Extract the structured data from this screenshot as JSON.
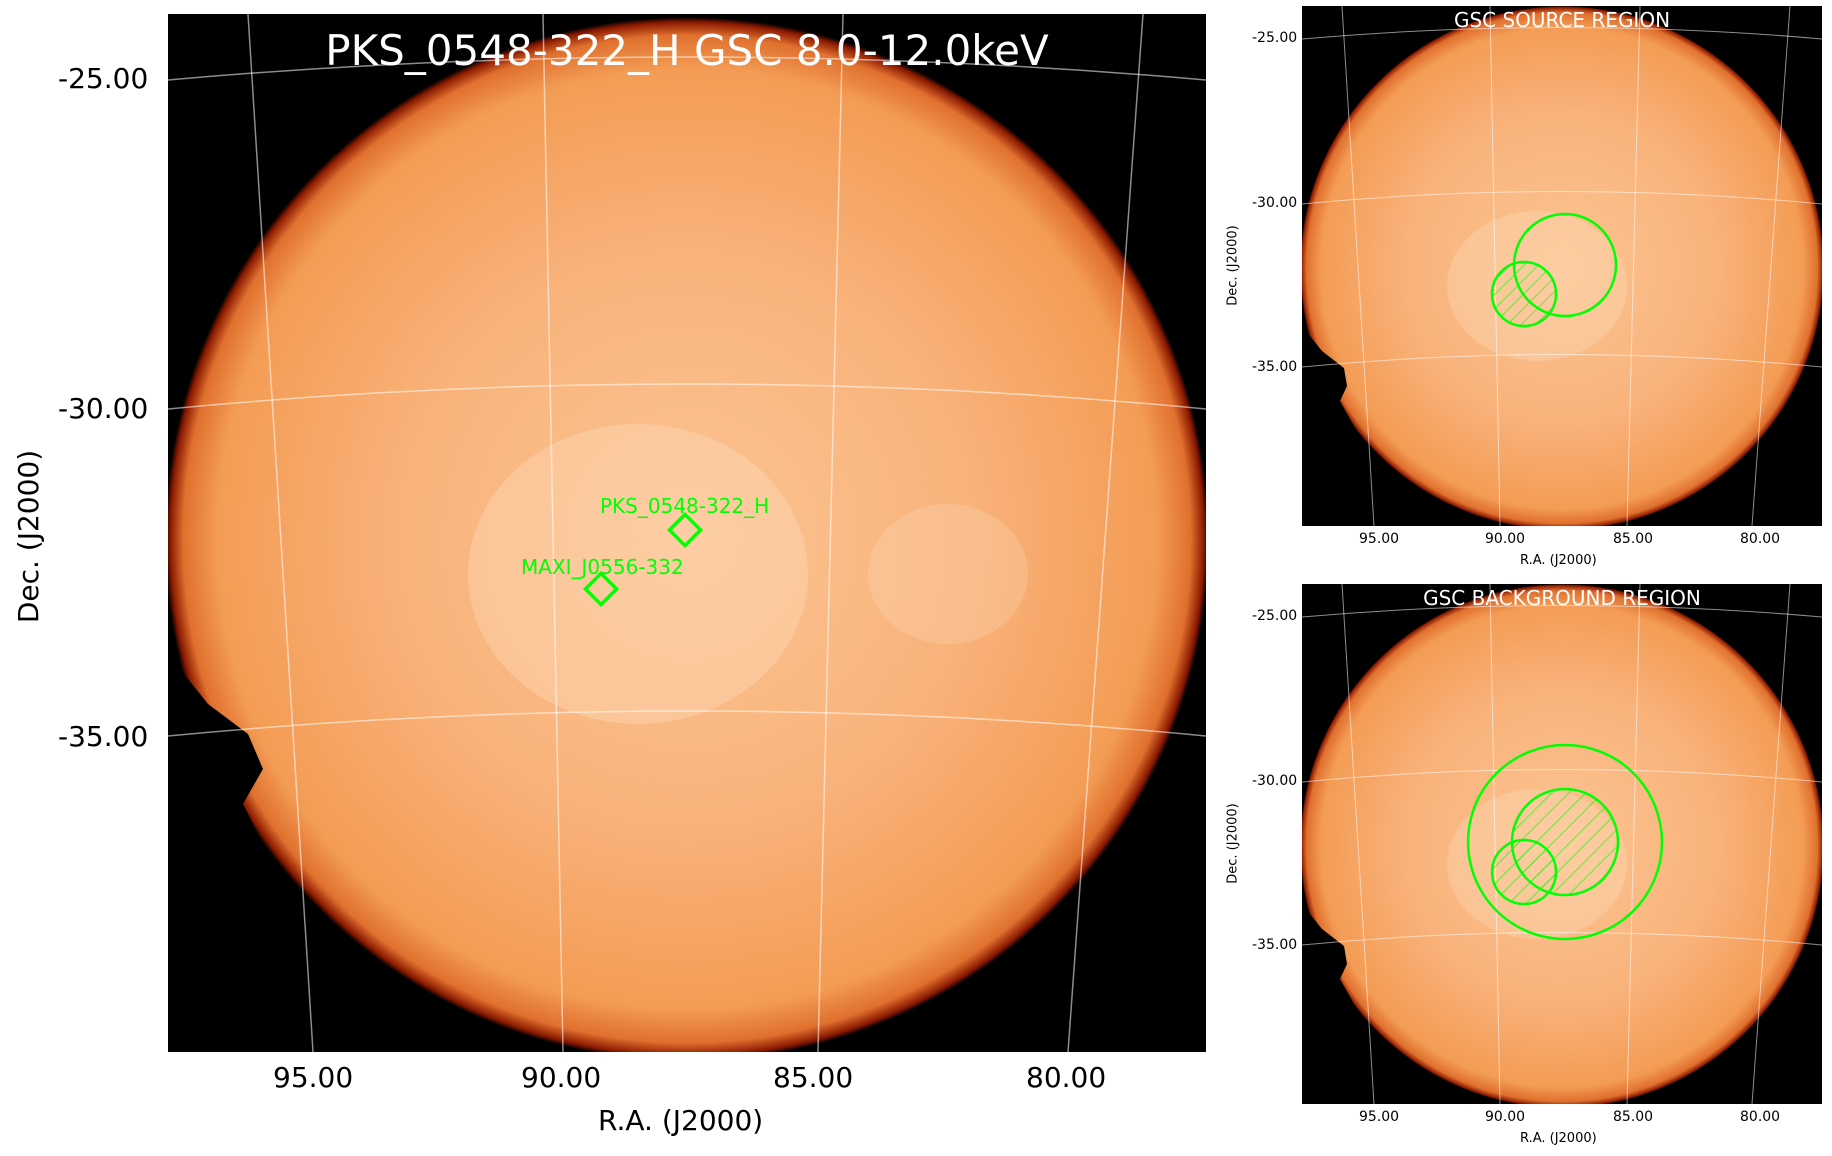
{
  "main": {
    "title": "PKS_0548-322_H GSC 8.0-12.0keV",
    "xlabel": "R.A. (J2000)",
    "ylabel": "Dec. (J2000)",
    "xticks": [
      "95.00",
      "90.00",
      "85.00",
      "80.00"
    ],
    "yticks": [
      "-25.00",
      "-30.00",
      "-35.00"
    ],
    "sources": [
      {
        "name": "PKS_0548-322_H"
      },
      {
        "name": "MAXI_J0556-332"
      }
    ]
  },
  "source_panel": {
    "title": "GSC SOURCE REGION",
    "xlabel": "R.A. (J2000)",
    "ylabel": "Dec. (J2000)",
    "xticks": [
      "95.00",
      "90.00",
      "85.00",
      "80.00"
    ],
    "yticks": [
      "-25.00",
      "-30.00",
      "-35.00"
    ]
  },
  "background_panel": {
    "title": "GSC BACKGROUND REGION",
    "xlabel": "R.A. (J2000)",
    "ylabel": "Dec. (J2000)",
    "xticks": [
      "95.00",
      "90.00",
      "85.00",
      "80.00"
    ],
    "yticks": [
      "-25.00",
      "-30.00",
      "-35.00"
    ]
  },
  "colors": {
    "disk_center": "#fdc89a",
    "disk_mid": "#f7a35c",
    "disk_edge": "#8b1a00",
    "region": "#00ff00",
    "grid": "#ffffff"
  }
}
